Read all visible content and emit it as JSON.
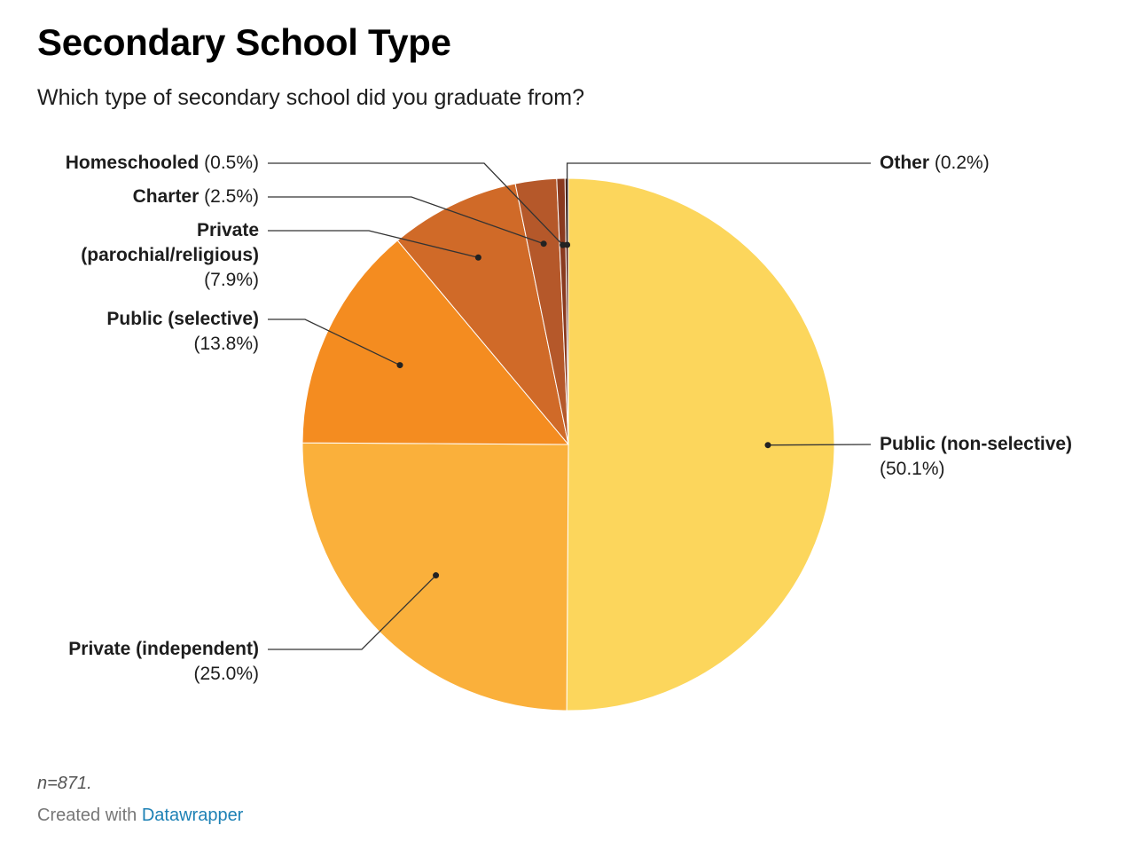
{
  "header": {
    "title": "Secondary School Type",
    "subtitle": "Which type of secondary school did you graduate from?"
  },
  "footer": {
    "note": "n=871.",
    "credit_prefix": "Created with",
    "credit_link": "Datawrapper"
  },
  "chart_data": {
    "type": "pie",
    "title": "Secondary School Type",
    "subtitle": "Which type of secondary school did you graduate from?",
    "unit": "%",
    "slices": [
      {
        "name": "Public (non-selective)",
        "value": 50.1,
        "display": "(50.1%)",
        "color": "#fcd65c"
      },
      {
        "name": "Private (independent)",
        "value": 25.0,
        "display": "(25.0%)",
        "color": "#fab03b"
      },
      {
        "name": "Public (selective)",
        "value": 13.8,
        "display": "(13.8%)",
        "color": "#f48c20"
      },
      {
        "name": "Private (parochial/religious)",
        "value": 7.9,
        "display": "(7.9%)",
        "color": "#d06a28"
      },
      {
        "name": "Charter",
        "value": 2.5,
        "display": "(2.5%)",
        "color": "#b5582a"
      },
      {
        "name": "Homeschooled",
        "value": 0.5,
        "display": "(0.5%)",
        "color": "#8a3a1f"
      },
      {
        "name": "Other",
        "value": 0.2,
        "display": "(0.2%)",
        "color": "#5a1e10"
      }
    ]
  }
}
